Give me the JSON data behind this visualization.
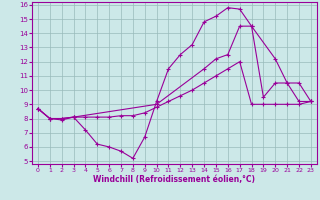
{
  "xlabel": "Windchill (Refroidissement éolien,°C)",
  "bg_color": "#cce8e8",
  "line_color": "#990099",
  "xlim": [
    -0.5,
    23.5
  ],
  "ylim": [
    4.8,
    16.2
  ],
  "yticks": [
    5,
    6,
    7,
    8,
    9,
    10,
    11,
    12,
    13,
    14,
    15,
    16
  ],
  "xticks": [
    0,
    1,
    2,
    3,
    4,
    5,
    6,
    7,
    8,
    9,
    10,
    11,
    12,
    13,
    14,
    15,
    16,
    17,
    18,
    19,
    20,
    21,
    22,
    23
  ],
  "line1_x": [
    0,
    1,
    2,
    3,
    4,
    5,
    6,
    7,
    8,
    9,
    10,
    11,
    12,
    13,
    14,
    15,
    16,
    17,
    18,
    19,
    20,
    21,
    22,
    23
  ],
  "line1_y": [
    8.7,
    8.0,
    8.0,
    8.1,
    7.2,
    6.2,
    6.0,
    5.7,
    5.2,
    6.7,
    9.2,
    11.5,
    12.5,
    13.2,
    14.8,
    15.2,
    15.8,
    15.7,
    14.5,
    9.5,
    10.5,
    10.5,
    9.2,
    9.2
  ],
  "line2_x": [
    0,
    1,
    2,
    3,
    10,
    14,
    15,
    16,
    17,
    18,
    20,
    21,
    22,
    23
  ],
  "line2_y": [
    8.7,
    8.0,
    8.0,
    8.1,
    9.0,
    11.5,
    12.2,
    12.5,
    14.5,
    14.5,
    12.2,
    10.5,
    10.5,
    9.2
  ],
  "line3_x": [
    0,
    1,
    2,
    3,
    4,
    5,
    6,
    7,
    8,
    9,
    10,
    11,
    12,
    13,
    14,
    15,
    16,
    17,
    18,
    19,
    20,
    21,
    22,
    23
  ],
  "line3_y": [
    8.7,
    8.0,
    7.9,
    8.1,
    8.1,
    8.1,
    8.1,
    8.2,
    8.2,
    8.4,
    8.8,
    9.2,
    9.6,
    10.0,
    10.5,
    11.0,
    11.5,
    12.0,
    9.0,
    9.0,
    9.0,
    9.0,
    9.0,
    9.2
  ],
  "grid_color": "#99bbbb",
  "marker": "+"
}
